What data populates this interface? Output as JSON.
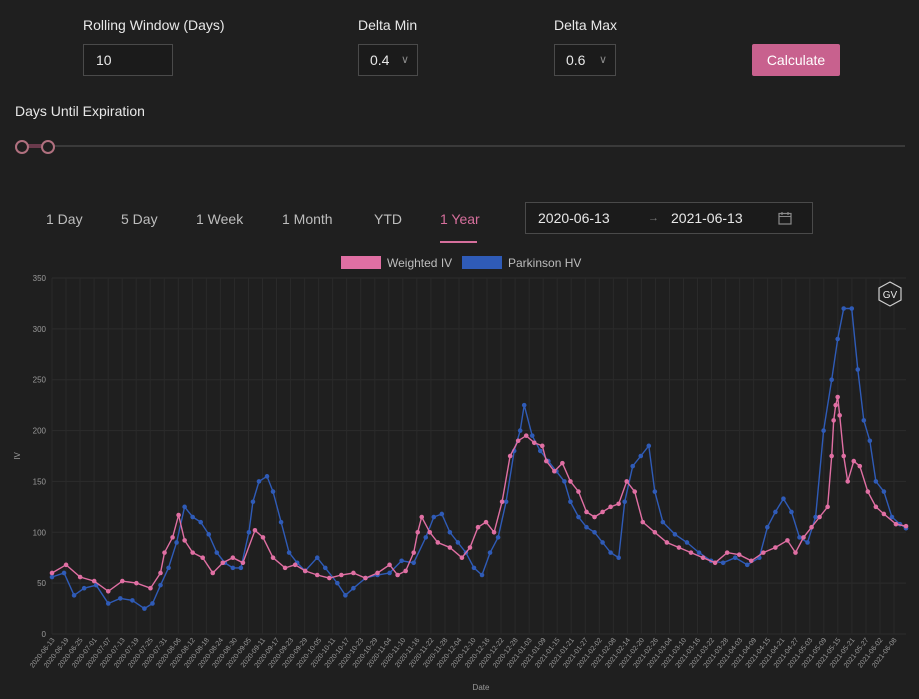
{
  "controls": {
    "rolling_label": "Rolling Window (Days)",
    "rolling_value": "10",
    "delta_min_label": "Delta Min",
    "delta_min_value": "0.4",
    "delta_max_label": "Delta Max",
    "delta_max_value": "0.6",
    "calculate_label": "Calculate",
    "days_label": "Days Until Expiration",
    "days_range_fraction": [
      0,
      0.03
    ]
  },
  "tabs": {
    "items": [
      "1 Day",
      "5 Day",
      "1 Week",
      "1 Month",
      "YTD",
      "1 Year"
    ],
    "active": "1 Year"
  },
  "date_range": {
    "start": "2020-06-13",
    "separator": "→",
    "end": "2021-06-13",
    "icon": "calendar-icon"
  },
  "logo_text": "GV",
  "colors": {
    "weighted_iv": "#e06fa3",
    "parkinson_hv": "#2f5bb7",
    "accent": "#c8618e"
  },
  "chart_data": {
    "type": "line",
    "xlabel": "Date",
    "ylabel": "IV",
    "ylim": [
      0,
      350
    ],
    "yticks": [
      0,
      50,
      100,
      150,
      200,
      250,
      300,
      350
    ],
    "grid": true,
    "legend_position": "top-center",
    "x_tick_labels": [
      "2020-06-13",
      "2020-06-19",
      "2020-06-25",
      "2020-07-01",
      "2020-07-07",
      "2020-07-13",
      "2020-07-19",
      "2020-07-25",
      "2020-07-31",
      "2020-08-06",
      "2020-08-12",
      "2020-08-18",
      "2020-08-24",
      "2020-08-30",
      "2020-09-05",
      "2020-09-11",
      "2020-09-17",
      "2020-09-23",
      "2020-09-29",
      "2020-10-05",
      "2020-10-11",
      "2020-10-17",
      "2020-10-23",
      "2020-10-29",
      "2020-11-04",
      "2020-11-10",
      "2020-11-16",
      "2020-11-22",
      "2020-11-28",
      "2020-12-04",
      "2020-12-10",
      "2020-12-16",
      "2020-12-22",
      "2020-12-28",
      "2021-01-03",
      "2021-01-09",
      "2021-01-15",
      "2021-01-21",
      "2021-01-27",
      "2021-02-02",
      "2021-02-08",
      "2021-02-14",
      "2021-02-20",
      "2021-02-26",
      "2021-03-04",
      "2021-03-10",
      "2021-03-16",
      "2021-03-22",
      "2021-03-28",
      "2021-04-03",
      "2021-04-09",
      "2021-04-15",
      "2021-04-21",
      "2021-04-27",
      "2021-05-03",
      "2021-05-09",
      "2021-05-15",
      "2021-05-21",
      "2021-05-27",
      "2021-06-02",
      "2021-06-08"
    ],
    "series": [
      {
        "name": "Weighted IV",
        "color": "#e06fa3",
        "points": [
          [
            0,
            60
          ],
          [
            7,
            68
          ],
          [
            14,
            56
          ],
          [
            21,
            52
          ],
          [
            28,
            42
          ],
          [
            35,
            52
          ],
          [
            42,
            50
          ],
          [
            49,
            45
          ],
          [
            54,
            60
          ],
          [
            56,
            80
          ],
          [
            60,
            95
          ],
          [
            63,
            117
          ],
          [
            66,
            92
          ],
          [
            70,
            80
          ],
          [
            75,
            75
          ],
          [
            80,
            60
          ],
          [
            85,
            70
          ],
          [
            90,
            75
          ],
          [
            95,
            70
          ],
          [
            101,
            102
          ],
          [
            105,
            95
          ],
          [
            110,
            75
          ],
          [
            116,
            65
          ],
          [
            121,
            68
          ],
          [
            126,
            62
          ],
          [
            132,
            58
          ],
          [
            138,
            55
          ],
          [
            144,
            58
          ],
          [
            150,
            60
          ],
          [
            156,
            55
          ],
          [
            162,
            60
          ],
          [
            168,
            68
          ],
          [
            172,
            58
          ],
          [
            176,
            62
          ],
          [
            180,
            80
          ],
          [
            182,
            100
          ],
          [
            184,
            115
          ],
          [
            188,
            100
          ],
          [
            192,
            90
          ],
          [
            198,
            85
          ],
          [
            204,
            75
          ],
          [
            208,
            85
          ],
          [
            212,
            105
          ],
          [
            216,
            110
          ],
          [
            220,
            100
          ],
          [
            224,
            130
          ],
          [
            228,
            175
          ],
          [
            232,
            190
          ],
          [
            236,
            195
          ],
          [
            240,
            188
          ],
          [
            244,
            185
          ],
          [
            246,
            170
          ],
          [
            250,
            160
          ],
          [
            254,
            168
          ],
          [
            258,
            150
          ],
          [
            262,
            140
          ],
          [
            266,
            120
          ],
          [
            270,
            115
          ],
          [
            274,
            120
          ],
          [
            278,
            125
          ],
          [
            282,
            128
          ],
          [
            286,
            150
          ],
          [
            290,
            140
          ],
          [
            294,
            110
          ],
          [
            300,
            100
          ],
          [
            306,
            90
          ],
          [
            312,
            85
          ],
          [
            318,
            80
          ],
          [
            324,
            75
          ],
          [
            330,
            70
          ],
          [
            336,
            80
          ],
          [
            342,
            78
          ],
          [
            348,
            72
          ],
          [
            354,
            80
          ],
          [
            360,
            85
          ],
          [
            366,
            92
          ],
          [
            370,
            80
          ],
          [
            374,
            95
          ],
          [
            378,
            105
          ],
          [
            382,
            115
          ],
          [
            386,
            125
          ],
          [
            388,
            175
          ],
          [
            389,
            210
          ],
          [
            390,
            225
          ],
          [
            391,
            233
          ],
          [
            392,
            215
          ],
          [
            394,
            175
          ],
          [
            396,
            150
          ],
          [
            399,
            170
          ],
          [
            402,
            165
          ],
          [
            406,
            140
          ],
          [
            410,
            125
          ],
          [
            414,
            118
          ],
          [
            420,
            108
          ],
          [
            425,
            106
          ]
        ]
      },
      {
        "name": "Parkinson HV",
        "color": "#2f5bb7",
        "points": [
          [
            0,
            56
          ],
          [
            6,
            60
          ],
          [
            11,
            38
          ],
          [
            16,
            45
          ],
          [
            22,
            48
          ],
          [
            28,
            30
          ],
          [
            34,
            35
          ],
          [
            40,
            33
          ],
          [
            46,
            25
          ],
          [
            50,
            30
          ],
          [
            54,
            48
          ],
          [
            58,
            65
          ],
          [
            62,
            90
          ],
          [
            66,
            125
          ],
          [
            70,
            115
          ],
          [
            74,
            110
          ],
          [
            78,
            98
          ],
          [
            82,
            80
          ],
          [
            86,
            70
          ],
          [
            90,
            65
          ],
          [
            94,
            65
          ],
          [
            98,
            100
          ],
          [
            100,
            130
          ],
          [
            103,
            150
          ],
          [
            107,
            155
          ],
          [
            110,
            140
          ],
          [
            114,
            110
          ],
          [
            118,
            80
          ],
          [
            122,
            70
          ],
          [
            126,
            62
          ],
          [
            132,
            75
          ],
          [
            136,
            65
          ],
          [
            142,
            50
          ],
          [
            146,
            38
          ],
          [
            150,
            45
          ],
          [
            156,
            55
          ],
          [
            162,
            58
          ],
          [
            168,
            60
          ],
          [
            174,
            72
          ],
          [
            180,
            70
          ],
          [
            186,
            95
          ],
          [
            190,
            115
          ],
          [
            194,
            118
          ],
          [
            198,
            100
          ],
          [
            202,
            90
          ],
          [
            206,
            80
          ],
          [
            210,
            65
          ],
          [
            214,
            58
          ],
          [
            218,
            80
          ],
          [
            222,
            95
          ],
          [
            226,
            130
          ],
          [
            230,
            180
          ],
          [
            233,
            200
          ],
          [
            235,
            225
          ],
          [
            239,
            195
          ],
          [
            243,
            180
          ],
          [
            247,
            170
          ],
          [
            251,
            160
          ],
          [
            255,
            150
          ],
          [
            258,
            130
          ],
          [
            262,
            115
          ],
          [
            266,
            105
          ],
          [
            270,
            100
          ],
          [
            274,
            90
          ],
          [
            278,
            80
          ],
          [
            282,
            75
          ],
          [
            285,
            130
          ],
          [
            289,
            165
          ],
          [
            293,
            175
          ],
          [
            297,
            185
          ],
          [
            300,
            140
          ],
          [
            304,
            110
          ],
          [
            310,
            98
          ],
          [
            316,
            90
          ],
          [
            322,
            80
          ],
          [
            328,
            72
          ],
          [
            334,
            70
          ],
          [
            340,
            75
          ],
          [
            346,
            68
          ],
          [
            352,
            75
          ],
          [
            356,
            105
          ],
          [
            360,
            120
          ],
          [
            364,
            133
          ],
          [
            368,
            120
          ],
          [
            372,
            95
          ],
          [
            376,
            90
          ],
          [
            380,
            115
          ],
          [
            384,
            200
          ],
          [
            388,
            250
          ],
          [
            391,
            290
          ],
          [
            394,
            320
          ],
          [
            398,
            320
          ],
          [
            401,
            260
          ],
          [
            404,
            210
          ],
          [
            407,
            190
          ],
          [
            410,
            150
          ],
          [
            414,
            140
          ],
          [
            418,
            115
          ],
          [
            422,
            108
          ],
          [
            425,
            104
          ]
        ]
      }
    ]
  }
}
